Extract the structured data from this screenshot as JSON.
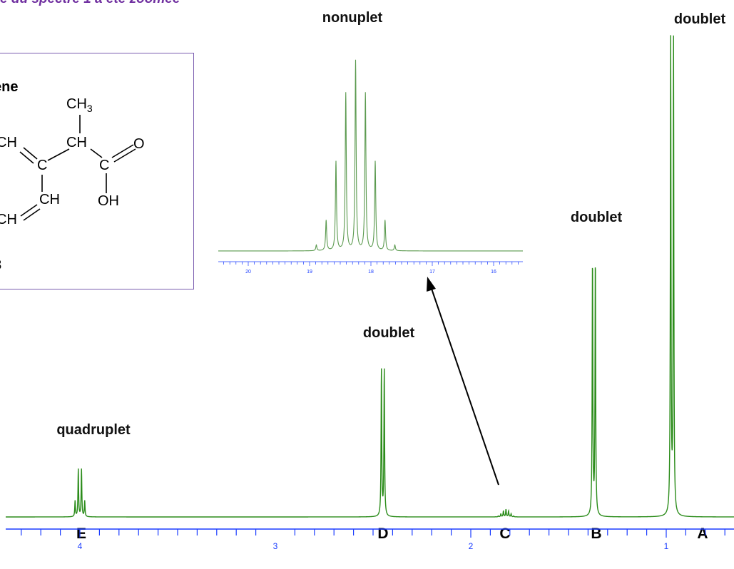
{
  "caption": "e du spectre 1 a été zoomée",
  "molecule": {
    "title_fragment": "ène",
    "footer_fragment": "3",
    "atoms": {
      "ch3_top": "CH",
      "ch3_sub": "3",
      "ch_left": "CH",
      "ch_mid": "CH",
      "c_center": "C",
      "c_carboxyl": "C",
      "o_double": "O",
      "ch_lower": "CH",
      "oh": "OH",
      "ch_bottom": "CH"
    }
  },
  "multiplets": {
    "A": "doublet",
    "B": "doublet",
    "C": "nonuplet",
    "D": "doublet",
    "E": "quadruplet"
  },
  "peak_letters": [
    "E",
    "D",
    "C",
    "B",
    "A"
  ],
  "main_axis": {
    "tick_labels": [
      "4",
      "3",
      "2",
      "1"
    ],
    "color": "#1a3cff"
  },
  "zoom_axis": {
    "tick_labels": [
      "20",
      "19",
      "18",
      "17",
      "16"
    ]
  },
  "colors": {
    "spectrum": "#2b8c1a",
    "inset_trace": "#5b9a4f",
    "axis": "#1a3cff",
    "caption": "#7030a0"
  },
  "chart_data": {
    "type": "line",
    "title": "",
    "xlabel": "",
    "ylabel": "",
    "x_axis": "chemical shift (ppm), decreasing left to right",
    "xlim": [
      4.4,
      0.3
    ],
    "multiplets": [
      {
        "letter": "E",
        "center": 4.0,
        "pattern": "quadruplet",
        "lines": 4,
        "relative_height": 0.1
      },
      {
        "letter": "D",
        "center": 2.45,
        "pattern": "doublet",
        "lines": 2,
        "relative_height": 0.31
      },
      {
        "letter": "C",
        "center": 1.82,
        "pattern": "nonuplet",
        "lines": 9,
        "relative_height": 0.016
      },
      {
        "letter": "B",
        "center": 1.37,
        "pattern": "doublet",
        "lines": 2,
        "relative_height": 0.54
      },
      {
        "letter": "A",
        "center": 0.97,
        "pattern": "doublet",
        "lines": 2,
        "relative_height": 1.0
      }
    ],
    "zoom_inset": {
      "source_letter": "C",
      "pattern": "nonuplet",
      "xlim": [
        20.3,
        15.6
      ],
      "center": 18.25,
      "line_spacing": 0.16,
      "line_heights": [
        0.03,
        0.16,
        0.47,
        0.83,
        1.0,
        0.83,
        0.47,
        0.16,
        0.03
      ]
    }
  }
}
